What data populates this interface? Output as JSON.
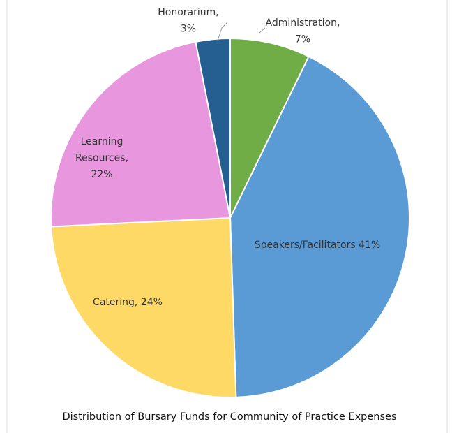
{
  "chart_data": {
    "type": "pie",
    "title": "Distribution of Bursary Funds for Community of Practice Expenses",
    "categories": [
      "Administration",
      "Speakers/Facilitators",
      "Catering",
      "Learning Resources",
      "Honorarium"
    ],
    "values": [
      7,
      41,
      24,
      22,
      3
    ],
    "value_labels": [
      [
        "Administration,",
        "7%"
      ],
      [
        "Speakers/Facilitators 41%"
      ],
      [
        "Catering, 24%"
      ],
      [
        "Learning",
        "Resources,",
        "22%"
      ],
      [
        "Honorarium,",
        "3%"
      ]
    ],
    "colors": [
      "#70ad47",
      "#5b9bd5",
      "#ffd966",
      "#e896de",
      "#255e91"
    ]
  }
}
